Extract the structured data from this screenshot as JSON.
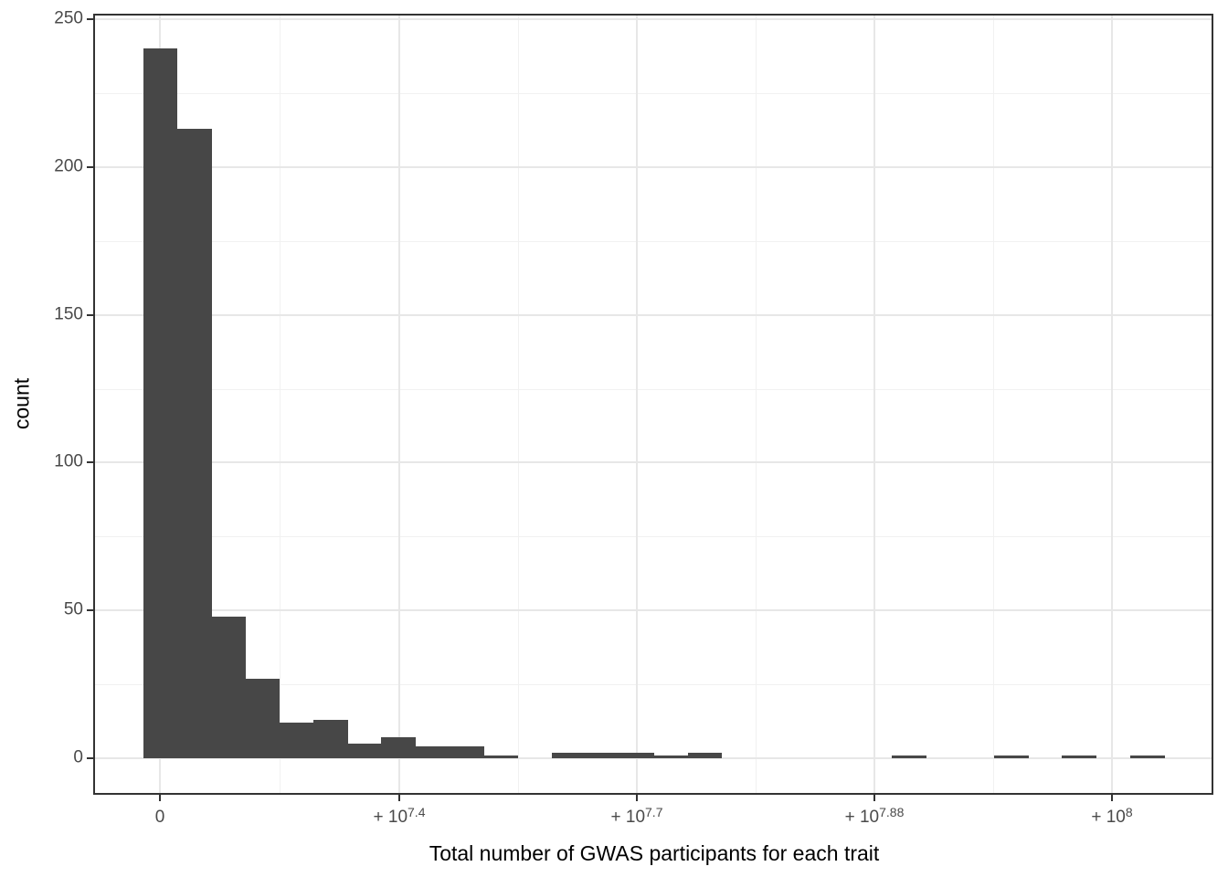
{
  "chart_data": {
    "type": "histogram-bar",
    "title": "",
    "xlabel": "Total number of GWAS participants for each trait",
    "ylabel": "count",
    "ylim": [
      0,
      252
    ],
    "y_ticks": [
      0,
      50,
      100,
      150,
      200,
      250
    ],
    "y_minor_gridlines": [
      25,
      75,
      125,
      175,
      225
    ],
    "x_ticks": [
      {
        "base": "0",
        "exp": ""
      },
      {
        "base": "+ 10",
        "exp": "7.4"
      },
      {
        "base": "+ 10",
        "exp": "7.7"
      },
      {
        "base": "+ 10",
        "exp": "7.88"
      },
      {
        "base": "+ 10",
        "exp": "8"
      }
    ],
    "bins": 30,
    "counts": [
      240,
      213,
      48,
      27,
      12,
      13,
      5,
      7,
      4,
      4,
      1,
      0,
      2,
      2,
      2,
      1,
      2,
      0,
      0,
      0,
      0,
      0,
      1,
      0,
      0,
      1,
      0,
      1,
      0,
      1
    ],
    "legend": false,
    "grid": true,
    "colors": {
      "bar_fill": "#474747",
      "panel_background": "#ffffff",
      "panel_border": "#333333",
      "grid_major": "#e7e7e7",
      "grid_minor": "#f1f1f1",
      "tick_text": "#4a4a4a",
      "axis_title_text": "#000000",
      "tick_mark": "#333333"
    }
  }
}
